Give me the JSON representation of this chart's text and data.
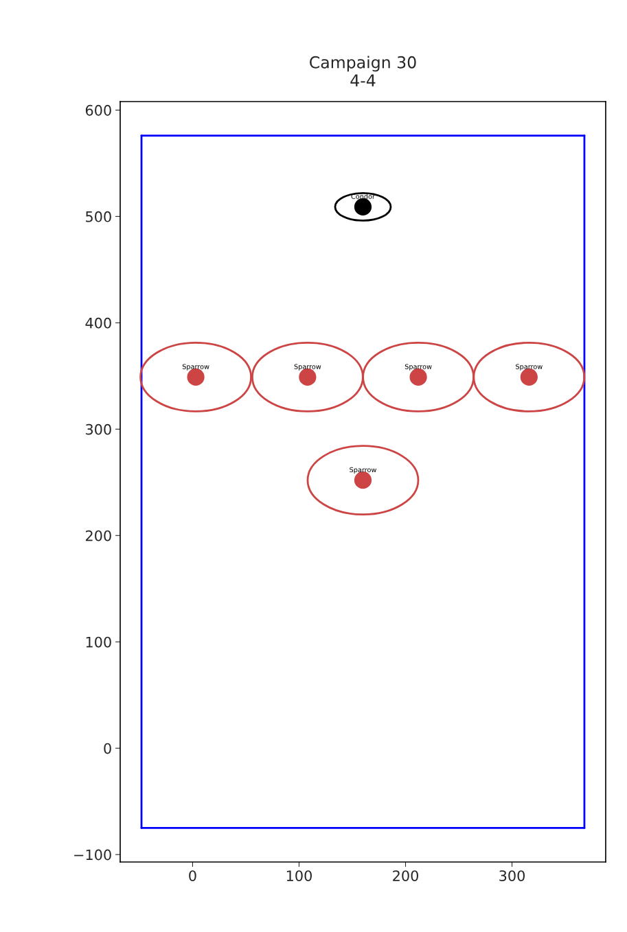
{
  "chart_data": {
    "type": "scatter",
    "title": "Campaign 30",
    "subtitle": "4-4",
    "xlim": [
      -68,
      388
    ],
    "ylim": [
      -107,
      608
    ],
    "xticks": [
      0,
      100,
      200,
      300
    ],
    "yticks": [
      {
        "value": -100,
        "label": "−100"
      },
      0,
      100,
      200,
      300,
      400,
      500,
      600
    ],
    "grid": false,
    "legend": false,
    "marker": "circle",
    "series": [
      {
        "name": "Sparrow",
        "color": "#cc4444",
        "x": [
          3,
          108,
          212,
          316,
          160
        ],
        "values": [
          349,
          349,
          349,
          349,
          252
        ]
      },
      {
        "name": "Condor",
        "color": "#000000",
        "x": [
          160
        ],
        "values": [
          509
        ]
      }
    ],
    "ref_lines": [
      {
        "axis": "x",
        "value": -48,
        "color": "#0000ff"
      },
      {
        "axis": "x",
        "value": 368,
        "color": "#0000ff"
      },
      {
        "axis": "y",
        "value": 576,
        "color": "#0000ff"
      },
      {
        "axis": "y",
        "value": -75,
        "color": "#0000ff"
      }
    ]
  }
}
